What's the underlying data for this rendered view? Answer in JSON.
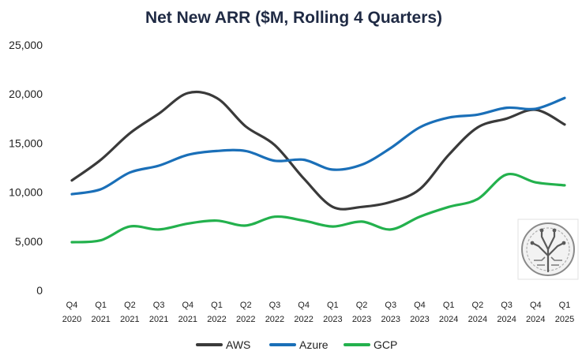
{
  "chart_data": {
    "type": "line",
    "title": "Net New ARR ($M, Rolling 4 Quarters)",
    "xlabel": "",
    "ylabel": "",
    "ylim": [
      0,
      25000
    ],
    "yticks": [
      0,
      5000,
      10000,
      15000,
      20000,
      25000
    ],
    "ytick_labels": [
      "0",
      "5,000",
      "10,000",
      "15,000",
      "20,000",
      "25,000"
    ],
    "grid": false,
    "legend_position": "bottom",
    "categories": [
      {
        "q": "Q4",
        "y": "2020"
      },
      {
        "q": "Q1",
        "y": "2021"
      },
      {
        "q": "Q2",
        "y": "2021"
      },
      {
        "q": "Q3",
        "y": "2021"
      },
      {
        "q": "Q4",
        "y": "2021"
      },
      {
        "q": "Q1",
        "y": "2022"
      },
      {
        "q": "Q2",
        "y": "2022"
      },
      {
        "q": "Q3",
        "y": "2022"
      },
      {
        "q": "Q4",
        "y": "2022"
      },
      {
        "q": "Q1",
        "y": "2023"
      },
      {
        "q": "Q2",
        "y": "2023"
      },
      {
        "q": "Q3",
        "y": "2023"
      },
      {
        "q": "Q4",
        "y": "2023"
      },
      {
        "q": "Q1",
        "y": "2024"
      },
      {
        "q": "Q2",
        "y": "2024"
      },
      {
        "q": "Q3",
        "y": "2024"
      },
      {
        "q": "Q4",
        "y": "2024"
      },
      {
        "q": "Q1",
        "y": "2025"
      }
    ],
    "series": [
      {
        "name": "AWS",
        "color": "#3a3a3a",
        "values": [
          11200,
          13300,
          16000,
          18000,
          20100,
          19600,
          16700,
          14800,
          11400,
          8500,
          8500,
          9000,
          10300,
          13800,
          16600,
          17500,
          18400,
          16900
        ]
      },
      {
        "name": "Azure",
        "color": "#1a6fb8",
        "values": [
          9800,
          10300,
          12000,
          12700,
          13800,
          14200,
          14200,
          13200,
          13300,
          12300,
          12800,
          14500,
          16600,
          17600,
          17900,
          18600,
          18500,
          19600
        ]
      },
      {
        "name": "GCP",
        "color": "#23b14d",
        "values": [
          4900,
          5100,
          6500,
          6200,
          6800,
          7100,
          6600,
          7500,
          7100,
          6500,
          7000,
          6200,
          7500,
          8500,
          9300,
          11800,
          11000,
          10700
        ]
      }
    ]
  },
  "watermark": {
    "icon": "circuit-tree-logo-icon"
  }
}
